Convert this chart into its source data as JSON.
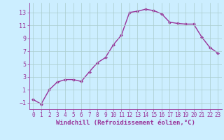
{
  "x": [
    0,
    1,
    2,
    3,
    4,
    5,
    6,
    7,
    8,
    9,
    10,
    11,
    12,
    13,
    14,
    15,
    16,
    17,
    18,
    19,
    20,
    21,
    22,
    23
  ],
  "y": [
    -0.5,
    -1.2,
    1.0,
    2.2,
    2.6,
    2.6,
    2.3,
    3.8,
    5.2,
    6.0,
    8.0,
    9.5,
    13.0,
    13.2,
    13.5,
    13.3,
    12.8,
    11.5,
    11.3,
    11.2,
    11.2,
    9.2,
    7.6,
    6.7
  ],
  "line_color": "#993399",
  "marker": "D",
  "markersize": 2.0,
  "linewidth": 1.0,
  "xlabel": "Windchill (Refroidissement éolien,°C)",
  "xlabel_fontsize": 6.5,
  "xlabel_color": "#993399",
  "background_color": "#cceeff",
  "grid_color": "#aacccc",
  "tick_color": "#993399",
  "ylim": [
    -2,
    14.5
  ],
  "xlim": [
    -0.5,
    23.5
  ],
  "yticks": [
    -1,
    1,
    3,
    5,
    7,
    9,
    11,
    13
  ],
  "xticks": [
    0,
    1,
    2,
    3,
    4,
    5,
    6,
    7,
    8,
    9,
    10,
    11,
    12,
    13,
    14,
    15,
    16,
    17,
    18,
    19,
    20,
    21,
    22,
    23
  ],
  "tick_fontsize": 5.5
}
